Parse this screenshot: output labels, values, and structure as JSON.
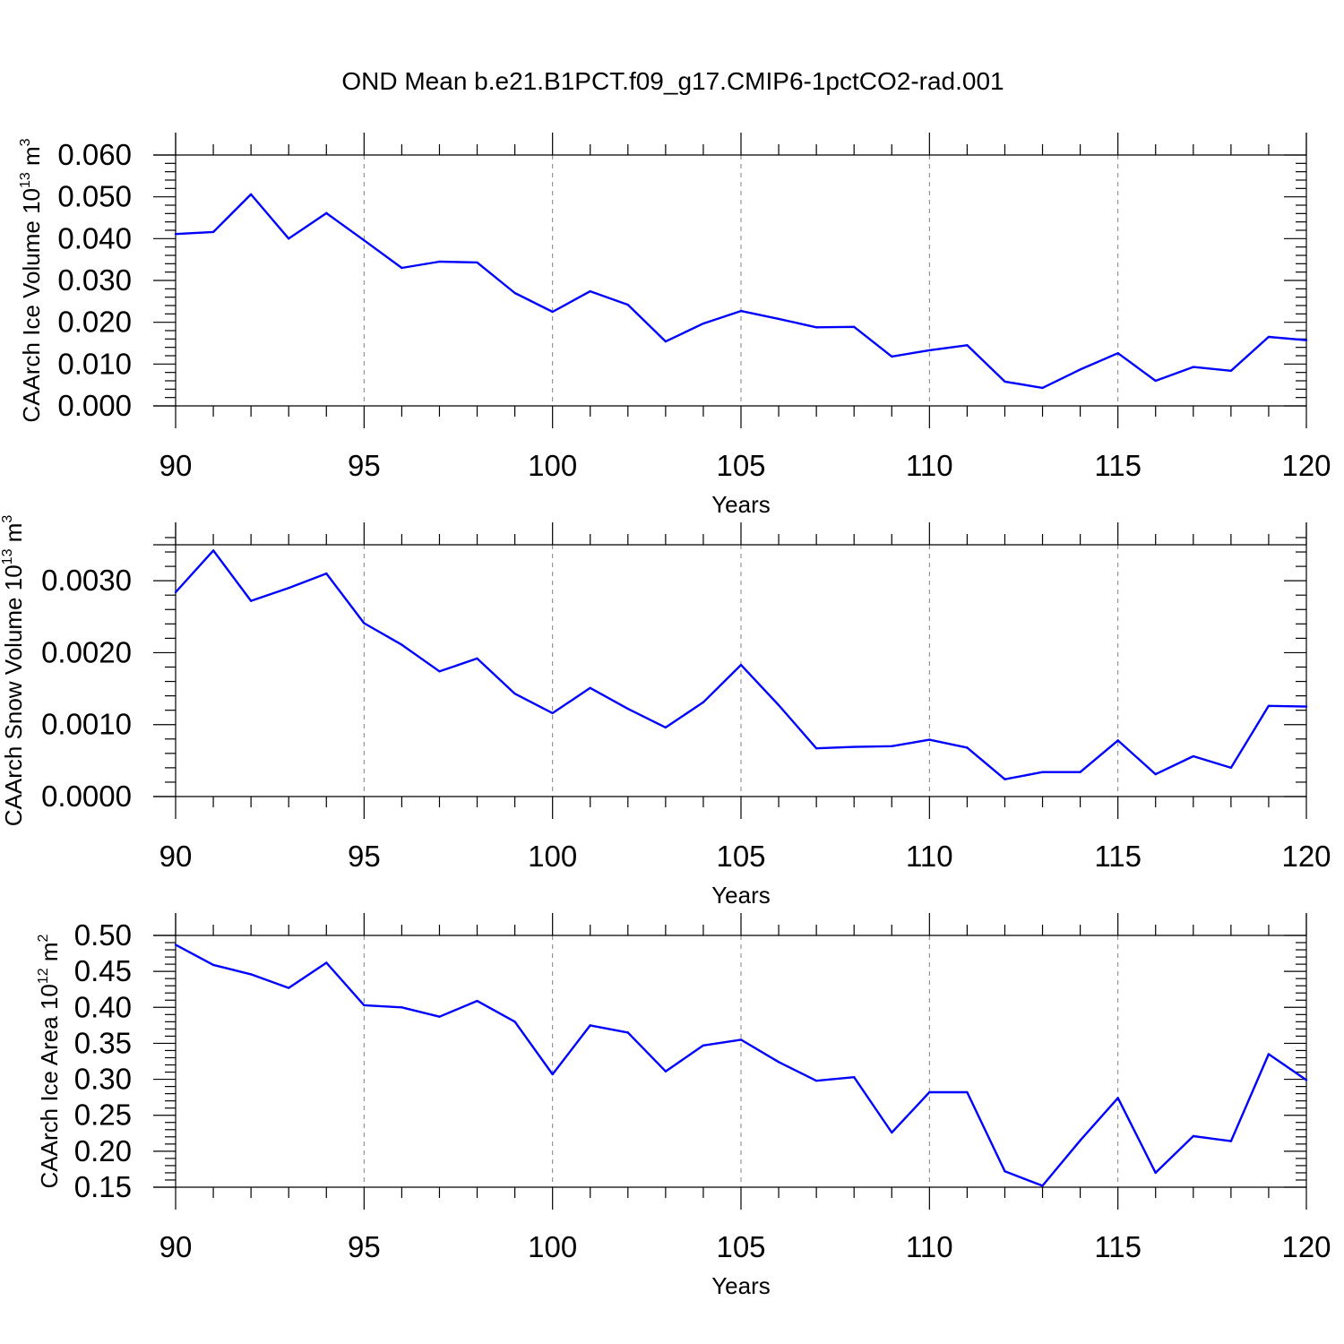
{
  "title": "OND Mean b.e21.B1PCT.f09_g17.CMIP6-1pctCO2-rad.001",
  "colors": {
    "line": "#0000ff",
    "axis": "#000000",
    "grid": "#808080"
  },
  "chart_data": [
    {
      "type": "line",
      "ylabel": {
        "text": "CAArch Ice Volume 10",
        "sup": "13",
        "unit": " m",
        "unit_sup": "3"
      },
      "xlabel": "Years",
      "xlim": [
        90,
        120
      ],
      "ylim": [
        0.0,
        0.06
      ],
      "x_ticks": [
        90,
        95,
        100,
        105,
        110,
        115,
        120
      ],
      "x_tick_labels": [
        "90",
        "95",
        "100",
        "105",
        "110",
        "115",
        "120"
      ],
      "y_ticks": [
        0.0,
        0.01,
        0.02,
        0.03,
        0.04,
        0.05,
        0.06
      ],
      "y_tick_labels": [
        "0.000",
        "0.010",
        "0.020",
        "0.030",
        "0.040",
        "0.050",
        "0.060"
      ],
      "grid": "vertical dashed at major x ticks",
      "x": [
        90,
        91,
        92,
        93,
        94,
        95,
        96,
        97,
        98,
        99,
        100,
        101,
        102,
        103,
        104,
        105,
        106,
        107,
        108,
        109,
        110,
        111,
        112,
        113,
        114,
        115,
        116,
        117,
        118,
        119,
        120
      ],
      "values": [
        0.0411,
        0.0416,
        0.0506,
        0.04,
        0.0461,
        0.0396,
        0.033,
        0.0345,
        0.0343,
        0.027,
        0.0225,
        0.0274,
        0.0242,
        0.0154,
        0.0197,
        0.0227,
        0.0208,
        0.0188,
        0.0189,
        0.0118,
        0.0133,
        0.0145,
        0.0058,
        0.0043,
        0.0087,
        0.0126,
        0.006,
        0.0093,
        0.0084,
        0.0165,
        0.0157
      ]
    },
    {
      "type": "line",
      "ylabel": {
        "text": "CAArch Snow Volume 10",
        "sup": "13",
        "unit": " m",
        "unit_sup": "3"
      },
      "xlabel": "Years",
      "xlim": [
        90,
        120
      ],
      "ylim": [
        0.0,
        0.0035
      ],
      "x_ticks": [
        90,
        95,
        100,
        105,
        110,
        115,
        120
      ],
      "x_tick_labels": [
        "90",
        "95",
        "100",
        "105",
        "110",
        "115",
        "120"
      ],
      "y_ticks": [
        0.0,
        0.001,
        0.002,
        0.003
      ],
      "y_tick_labels": [
        "0.0000",
        "0.0010",
        "0.0020",
        "0.0030"
      ],
      "grid": "vertical dashed at major x ticks",
      "x": [
        90,
        91,
        92,
        93,
        94,
        95,
        96,
        97,
        98,
        99,
        100,
        101,
        102,
        103,
        104,
        105,
        106,
        107,
        108,
        109,
        110,
        111,
        112,
        113,
        114,
        115,
        116,
        117,
        118,
        119,
        120
      ],
      "values": [
        0.00284,
        0.00342,
        0.00272,
        0.0029,
        0.0031,
        0.00241,
        0.00211,
        0.00174,
        0.00192,
        0.00143,
        0.00116,
        0.00151,
        0.00122,
        0.00096,
        0.00131,
        0.00183,
        0.00127,
        0.00067,
        0.00069,
        0.0007,
        0.00079,
        0.00068,
        0.00024,
        0.00034,
        0.00034,
        0.00078,
        0.00031,
        0.00056,
        0.0004,
        0.00126,
        0.00125
      ]
    },
    {
      "type": "line",
      "ylabel": {
        "text": "CAArch Ice Area 10",
        "sup": "12",
        "unit": " m",
        "unit_sup": "2"
      },
      "xlabel": "Years",
      "xlim": [
        90,
        120
      ],
      "ylim": [
        0.15,
        0.5
      ],
      "x_ticks": [
        90,
        95,
        100,
        105,
        110,
        115,
        120
      ],
      "x_tick_labels": [
        "90",
        "95",
        "100",
        "105",
        "110",
        "115",
        "120"
      ],
      "y_ticks": [
        0.15,
        0.2,
        0.25,
        0.3,
        0.35,
        0.4,
        0.45,
        0.5
      ],
      "y_tick_labels": [
        "0.15",
        "0.20",
        "0.25",
        "0.30",
        "0.35",
        "0.40",
        "0.45",
        "0.50"
      ],
      "grid": "vertical dashed at major x ticks",
      "x": [
        90,
        91,
        92,
        93,
        94,
        95,
        96,
        97,
        98,
        99,
        100,
        101,
        102,
        103,
        104,
        105,
        106,
        107,
        108,
        109,
        110,
        111,
        112,
        113,
        114,
        115,
        116,
        117,
        118,
        119,
        120
      ],
      "values": [
        0.487,
        0.459,
        0.446,
        0.427,
        0.462,
        0.403,
        0.4,
        0.387,
        0.409,
        0.38,
        0.307,
        0.375,
        0.365,
        0.311,
        0.347,
        0.355,
        0.324,
        0.298,
        0.303,
        0.226,
        0.282,
        0.282,
        0.172,
        0.152,
        0.215,
        0.274,
        0.17,
        0.221,
        0.214,
        0.335,
        0.299
      ]
    }
  ]
}
